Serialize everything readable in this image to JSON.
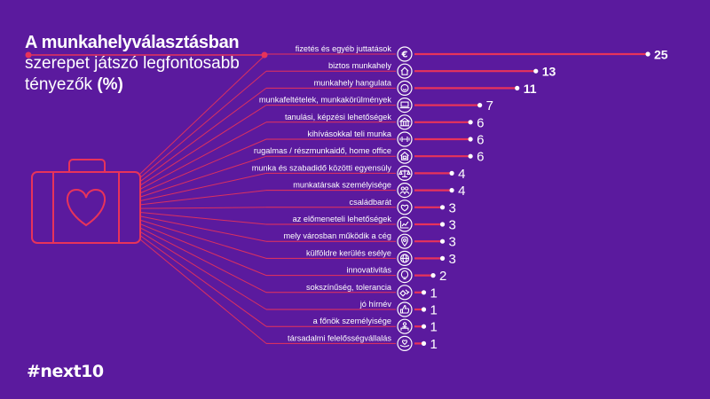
{
  "title": {
    "line1": "A munkahelyválasztásban",
    "line2": "szerepet játszó legfontosabb",
    "line3": "tényezők",
    "unit": "(%)"
  },
  "brand": "#next10",
  "colors": {
    "background": "#5b1a9e",
    "accent": "#e8335a",
    "text": "#ffffff"
  },
  "chart_data": {
    "type": "bar",
    "orientation": "horizontal",
    "unit": "%",
    "categories": [
      "fizetés és egyéb juttatások",
      "biztos munkahely",
      "munkahely hangulata",
      "munkafeltételek, munkakörülmények",
      "tanulási, képzési lehetőségek",
      "kihívásokkal teli munka",
      "rugalmas / részmunkaidő, home office",
      "munka és szabadidő közötti egyensúly",
      "munkatársak személyisége",
      "családbarát",
      "az előmeneteli lehetőségek",
      "mely városban működik a cég",
      "külföldre kerülés esélye",
      "innovativitás",
      "sokszínűség, tolerancia",
      "jó hírnév",
      "a főnök személyisége",
      "társadalmi felelősségvállalás"
    ],
    "values": [
      25,
      13,
      11,
      7,
      6,
      6,
      6,
      4,
      4,
      3,
      3,
      3,
      3,
      2,
      1,
      1,
      1,
      1
    ],
    "value_labels": [
      "25",
      "13",
      "11",
      "7",
      "6",
      "6",
      "6",
      "4",
      "4",
      "3",
      "3",
      "3",
      "3",
      "2",
      "1",
      "1",
      "1",
      "1"
    ],
    "icons": [
      "euro-icon",
      "home-icon",
      "smile-icon",
      "laptop-icon",
      "school-icon",
      "dumbbell-icon",
      "house-laptop-icon",
      "balance-icon",
      "people-icon",
      "heart-icon",
      "growth-chart-icon",
      "location-pin-icon",
      "globe-icon",
      "lightbulb-icon",
      "hands-icon",
      "thumbs-up-icon",
      "boss-icon",
      "hand-heart-icon"
    ],
    "xlim": [
      0,
      25
    ],
    "grid": false,
    "legend": "none"
  }
}
